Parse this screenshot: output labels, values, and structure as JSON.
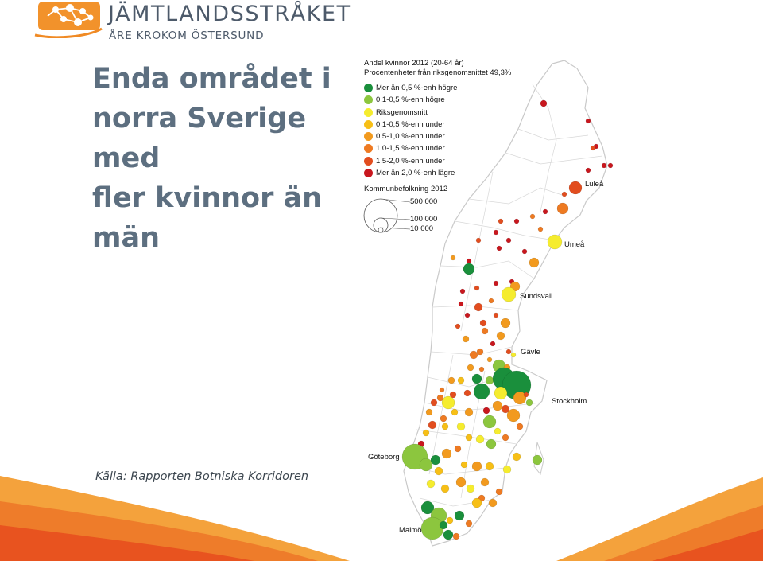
{
  "brand": {
    "name": "JÄMTLANDSSTRÅKET",
    "subtitle": "ÅRE KROKOM ÖSTERSUND"
  },
  "title_lines": [
    "Enda området i",
    "norra Sverige",
    "med",
    "fler kvinnor än",
    "män"
  ],
  "source": "Källa: Rapporten Botniska Korridoren",
  "legend": {
    "title_line1": "Andel kvinnor 2012 (20-64 år)",
    "title_line2": "Procentenheter från riksgenomsnittet 49,3%",
    "items": [
      {
        "label": "Mer än 0,5 %-enh högre",
        "color": "#1a8f3c"
      },
      {
        "label": "0,1-0,5 %-enh högre",
        "color": "#8cc63e"
      },
      {
        "label": "Riksgenomsnitt",
        "color": "#f5ec2e"
      },
      {
        "label": "0,1-0,5 %-enh under",
        "color": "#f7bf16"
      },
      {
        "label": "0,5-1,0 %-enh under",
        "color": "#f29a1e"
      },
      {
        "label": "1,0-1,5 %-enh under",
        "color": "#ee7a22"
      },
      {
        "label": "1,5-2,0 %-enh under",
        "color": "#e24d1f"
      },
      {
        "label": "Mer än 2,0 %-enh lägre",
        "color": "#c8171e"
      }
    ],
    "size_title": "Kommunbefolkning 2012",
    "size_labels": [
      "500 000",
      "100 000",
      "10 000"
    ]
  },
  "cities": [
    "Luleå",
    "Umeå",
    "Sundsvall",
    "Gävle",
    "Stockholm",
    "Göteborg",
    "Malmö"
  ],
  "colors": {
    "title": "#5d6f80",
    "brand": "#4d5a6a",
    "orange_dark": "#e8531f",
    "orange_light": "#f4a23c"
  }
}
